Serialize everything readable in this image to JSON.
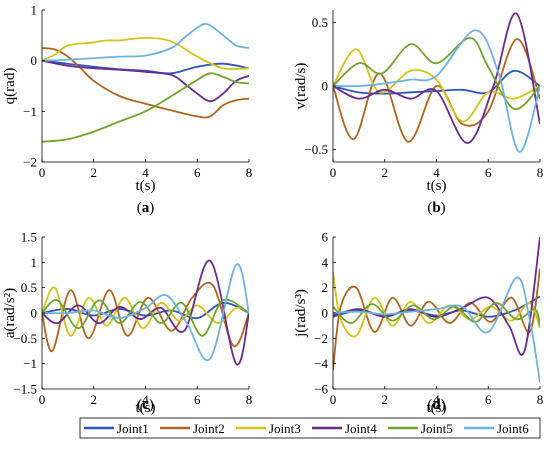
{
  "colors": {
    "Joint1": "#2e55b8",
    "Joint2": "#b0641f",
    "Joint3": "#d2c31e",
    "Joint4": "#6a2b8e",
    "Joint5": "#6ea42f",
    "Joint6": "#6fb1e4"
  },
  "legend": {
    "placement": "bottom-center",
    "entries": [
      "Joint1",
      "Joint2",
      "Joint3",
      "Joint4",
      "Joint5",
      "Joint6"
    ]
  },
  "chart_data": [
    {
      "type": "line",
      "panel_label": "(a)",
      "xlabel": "t(s)",
      "ylabel": "q(rad)",
      "xlim": [
        0,
        8
      ],
      "ylim": [
        -2,
        1
      ],
      "xticks": [
        0,
        2,
        4,
        6,
        8
      ],
      "yticks": [
        -2,
        -1,
        0,
        1
      ],
      "grid": false,
      "series": [
        {
          "name": "Joint1",
          "x": [
            0,
            1,
            2,
            3,
            4,
            5,
            6,
            7,
            8
          ],
          "y": [
            0,
            -0.06,
            -0.12,
            -0.17,
            -0.2,
            -0.25,
            -0.12,
            -0.06,
            -0.15
          ]
        },
        {
          "name": "Joint2",
          "x": [
            0,
            0.5,
            1,
            1.5,
            2,
            3,
            4,
            5,
            6,
            6.5,
            7,
            7.5,
            8
          ],
          "y": [
            0.25,
            0.22,
            0.08,
            -0.15,
            -0.4,
            -0.7,
            -0.85,
            -0.98,
            -1.1,
            -1.1,
            -0.88,
            -0.78,
            -0.75
          ]
        },
        {
          "name": "Joint3",
          "x": [
            0,
            0.5,
            1,
            2,
            2.5,
            3,
            4,
            5,
            6,
            7,
            8
          ],
          "y": [
            0,
            0.12,
            0.3,
            0.36,
            0.4,
            0.4,
            0.45,
            0.38,
            0.08,
            -0.15,
            -0.15
          ]
        },
        {
          "name": "Joint4",
          "x": [
            0,
            1,
            2,
            3,
            4,
            5,
            5.5,
            6,
            6.5,
            7,
            7.5,
            8
          ],
          "y": [
            0,
            -0.1,
            -0.15,
            -0.18,
            -0.22,
            -0.28,
            -0.45,
            -0.65,
            -0.8,
            -0.65,
            -0.4,
            -0.3
          ]
        },
        {
          "name": "Joint5",
          "x": [
            0,
            1,
            2,
            3,
            4,
            5,
            6,
            6.5,
            7,
            7.5,
            8
          ],
          "y": [
            -1.6,
            -1.55,
            -1.4,
            -1.2,
            -1.0,
            -0.7,
            -0.38,
            -0.25,
            -0.32,
            -0.42,
            -0.45
          ]
        },
        {
          "name": "Joint6",
          "x": [
            0,
            1,
            2,
            3,
            4,
            5,
            5.5,
            6,
            6.4,
            7,
            7.5,
            8
          ],
          "y": [
            0,
            0.02,
            0.05,
            0.08,
            0.1,
            0.25,
            0.45,
            0.65,
            0.72,
            0.5,
            0.3,
            0.25
          ]
        }
      ]
    },
    {
      "type": "line",
      "panel_label": "(b)",
      "xlabel": "t(s)",
      "ylabel": "v(rad/s)",
      "xlim": [
        0,
        8
      ],
      "ylim": [
        -0.6,
        0.6
      ],
      "xticks": [
        0,
        2,
        4,
        6,
        8
      ],
      "yticks": [
        -0.5,
        0,
        0.5
      ],
      "grid": false,
      "series": [
        {
          "name": "Joint1",
          "x": [
            0,
            1,
            2,
            3,
            4,
            5,
            6,
            7,
            8
          ],
          "y": [
            0,
            -0.05,
            -0.06,
            -0.05,
            -0.04,
            -0.03,
            -0.05,
            0.12,
            0
          ]
        },
        {
          "name": "Joint2",
          "x": [
            0,
            0.8,
            1.8,
            2.9,
            4,
            5,
            6,
            7.1,
            8
          ],
          "y": [
            0,
            -0.42,
            0.1,
            -0.44,
            0.0,
            -0.3,
            -0.2,
            0.37,
            -0.1
          ]
        },
        {
          "name": "Joint3",
          "x": [
            0,
            0.9,
            1.8,
            3,
            4,
            5,
            6,
            7,
            8
          ],
          "y": [
            0,
            0.29,
            -0.05,
            0.12,
            0.05,
            -0.28,
            -0.05,
            -0.1,
            0
          ]
        },
        {
          "name": "Joint4",
          "x": [
            0,
            1,
            2,
            3,
            4,
            5.2,
            6.2,
            7.1,
            8
          ],
          "y": [
            0,
            -0.1,
            -0.03,
            -0.1,
            -0.04,
            -0.45,
            0.0,
            0.57,
            -0.3
          ]
        },
        {
          "name": "Joint5",
          "x": [
            0,
            1,
            1.9,
            3,
            4,
            5.3,
            6,
            7,
            8
          ],
          "y": [
            0,
            0.18,
            0.1,
            0.33,
            0.18,
            0.38,
            0.15,
            -0.18,
            0
          ]
        },
        {
          "name": "Joint6",
          "x": [
            0,
            1,
            2,
            3,
            4,
            5.5,
            6.4,
            7.2,
            8
          ],
          "y": [
            0,
            0.0,
            0.02,
            0.05,
            0.08,
            0.44,
            0.1,
            -0.52,
            0.0
          ]
        }
      ]
    },
    {
      "type": "line",
      "panel_label": "(c)",
      "xlabel": "t(s)",
      "ylabel": "a(rad/s²)",
      "xlim": [
        0,
        8
      ],
      "ylim": [
        -1.5,
        1.5
      ],
      "xticks": [
        0,
        2,
        4,
        6,
        8
      ],
      "yticks": [
        -1.5,
        -1,
        -0.5,
        0,
        0.5,
        1,
        1.5
      ],
      "grid": false,
      "series": [
        {
          "name": "Joint1",
          "x": [
            0,
            1,
            2,
            3,
            4,
            5,
            6,
            7,
            8
          ],
          "y": [
            0,
            0.08,
            -0.05,
            0.08,
            -0.05,
            0.05,
            -0.1,
            0.2,
            0
          ]
        },
        {
          "name": "Joint2",
          "x": [
            0,
            0.4,
            1.1,
            1.8,
            2.6,
            3.3,
            4.1,
            5,
            5.8,
            6.6,
            7.4,
            8
          ],
          "y": [
            0,
            -0.75,
            0.45,
            -0.5,
            0.45,
            -0.45,
            0.3,
            -0.35,
            0.3,
            0.55,
            -0.65,
            0
          ]
        },
        {
          "name": "Joint3",
          "x": [
            0,
            0.5,
            1.1,
            1.8,
            2.5,
            3.2,
            3.9,
            4.6,
            5.3,
            6,
            6.8,
            7.5,
            8
          ],
          "y": [
            0,
            0.5,
            -0.45,
            0.3,
            -0.25,
            0.3,
            -0.3,
            0.2,
            -0.15,
            0.15,
            -0.2,
            0.1,
            0
          ]
        },
        {
          "name": "Joint4",
          "x": [
            0,
            0.6,
            1.4,
            2.2,
            3,
            3.8,
            4.6,
            5.5,
            6.5,
            7.5,
            8
          ],
          "y": [
            0,
            -0.2,
            0.15,
            -0.2,
            0.12,
            -0.12,
            0.1,
            -0.35,
            1.03,
            -1.0,
            0
          ]
        },
        {
          "name": "Joint5",
          "x": [
            0,
            0.6,
            1.4,
            2.2,
            3,
            3.8,
            4.6,
            5.4,
            6.2,
            7,
            8
          ],
          "y": [
            0,
            0.25,
            -0.3,
            0.25,
            -0.2,
            0.22,
            -0.2,
            0.2,
            -0.45,
            0.25,
            0
          ]
        },
        {
          "name": "Joint6",
          "x": [
            0,
            1,
            2,
            3,
            4,
            4.8,
            5.6,
            6.5,
            7.5,
            8
          ],
          "y": [
            0,
            0.0,
            0.05,
            -0.1,
            0.1,
            0.35,
            -0.2,
            -0.9,
            0.95,
            0
          ]
        }
      ]
    },
    {
      "type": "line",
      "panel_label": "(d)",
      "xlabel": "t(s)",
      "ylabel": "j(rad/s³)",
      "xlim": [
        0,
        8
      ],
      "ylim": [
        -6,
        6
      ],
      "xticks": [
        0,
        2,
        4,
        6,
        8
      ],
      "yticks": [
        -6,
        -4,
        -2,
        0,
        2,
        4,
        6
      ],
      "grid": false,
      "series": [
        {
          "name": "Joint1",
          "x": [
            0,
            1,
            2,
            3,
            4,
            5,
            6,
            7,
            8
          ],
          "y": [
            -0.3,
            0.2,
            -0.2,
            0.2,
            -0.2,
            0.2,
            -0.3,
            0.2,
            1.3
          ]
        },
        {
          "name": "Joint2",
          "x": [
            0,
            0.3,
            0.9,
            1.6,
            2.3,
            3,
            3.7,
            4.5,
            5.3,
            6.1,
            6.9,
            7.6,
            8
          ],
          "y": [
            -4.5,
            0.5,
            2.0,
            -1.5,
            1.2,
            -1.0,
            0.9,
            -0.8,
            0.8,
            -0.7,
            1.2,
            -1.5,
            3.5
          ]
        },
        {
          "name": "Joint3",
          "x": [
            0,
            0.3,
            0.9,
            1.6,
            2.3,
            3,
            3.7,
            4.5,
            5.3,
            6.1,
            6.9,
            7.6,
            8
          ],
          "y": [
            3.2,
            -0.5,
            -1.8,
            1.2,
            -1.0,
            0.9,
            -0.8,
            0.6,
            -0.5,
            0.5,
            -0.6,
            0.8,
            -1.2
          ]
        },
        {
          "name": "Joint4",
          "x": [
            0,
            1,
            2,
            3,
            4,
            5,
            6,
            6.8,
            7.4,
            8
          ],
          "y": [
            -0.2,
            0.3,
            -0.3,
            0.3,
            -0.3,
            0.4,
            1.2,
            -1.0,
            -3.0,
            6.0
          ]
        },
        {
          "name": "Joint5",
          "x": [
            0,
            0.7,
            1.5,
            2.3,
            3.1,
            3.9,
            4.7,
            5.5,
            6.3,
            7.1,
            7.8,
            8
          ],
          "y": [
            0.5,
            -0.8,
            0.7,
            -0.6,
            0.6,
            -0.5,
            0.5,
            -0.7,
            0.8,
            -0.5,
            0.3,
            -1.0
          ]
        },
        {
          "name": "Joint6",
          "x": [
            0,
            1,
            2,
            3,
            4,
            5,
            6,
            7.1,
            7.6,
            8
          ],
          "y": [
            0,
            0.1,
            -0.1,
            0.1,
            0.3,
            0.5,
            -1.5,
            2.8,
            -0.5,
            -5.5
          ]
        }
      ]
    }
  ]
}
